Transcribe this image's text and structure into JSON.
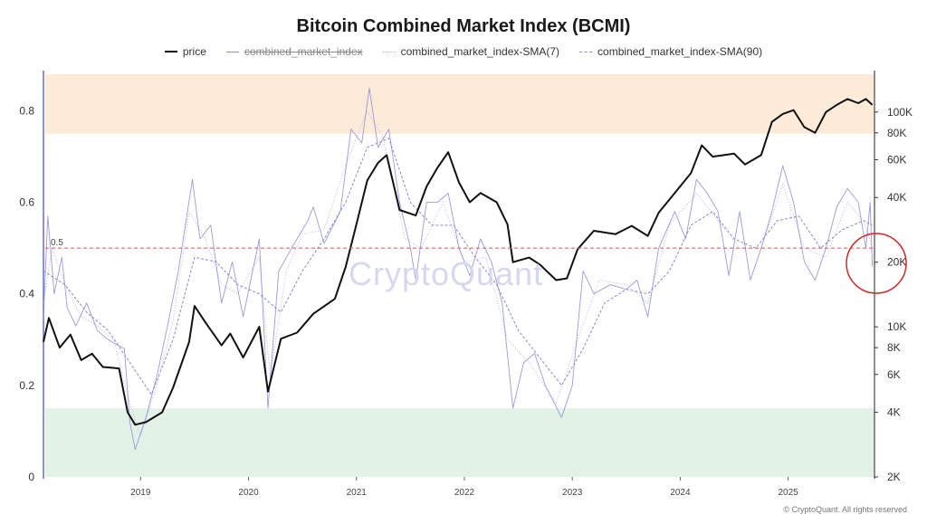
{
  "title": "Bitcoin Combined Market Index (BCMI)",
  "legend": [
    {
      "label": "price",
      "color": "#111111",
      "style": "solid"
    },
    {
      "label": "combined_market_index",
      "color": "#8a8ad6",
      "style": "solid-struck"
    },
    {
      "label": "combined_market_index-SMA(7)",
      "color": "#b3b3e6",
      "style": "dotted"
    },
    {
      "label": "combined_market_index-SMA(90)",
      "color": "#8a8ad6",
      "style": "dashed"
    }
  ],
  "watermark": "CryptoQuant",
  "copyright": "© CryptoQuant. All rights reserved",
  "reference_label": "0.5",
  "colors": {
    "price": "#111111",
    "index": "#8a8ad6",
    "sma7": "#b3b3e6",
    "sma90": "#7c7cc6",
    "overheat_zone": "#fdebd9",
    "undervalued_zone": "#e3f2e6",
    "reference_line": "#e05050",
    "annotation_circle": "#cc2a2a",
    "left_axis": "#6a6ae0"
  },
  "chart_data": {
    "type": "line",
    "title": "Bitcoin Combined Market Index (BCMI)",
    "x_tick_labels": [
      "2019",
      "2020",
      "2021",
      "2022",
      "2023",
      "2024",
      "2025"
    ],
    "xlim": [
      2018.1,
      2025.8
    ],
    "y_left": {
      "ylim": [
        0,
        0.88
      ],
      "ticks": [
        0,
        0.2,
        0.4,
        0.6,
        0.8
      ],
      "tick_labels": [
        "0",
        "0.2",
        "0.4",
        "0.6",
        "0.8"
      ]
    },
    "y_right": {
      "scale": "log",
      "ylim": [
        2000,
        150000
      ],
      "ticks": [
        2000,
        4000,
        6000,
        8000,
        10000,
        20000,
        40000,
        60000,
        80000,
        100000
      ],
      "tick_labels": [
        "2K",
        "4K",
        "6K",
        "8K",
        "10K",
        "20K",
        "40K",
        "60K",
        "80K",
        "100K"
      ]
    },
    "zones": [
      {
        "name": "overheat",
        "from": 0.75,
        "to": 0.88
      },
      {
        "name": "undervalued",
        "from": 0,
        "to": 0.15
      }
    ],
    "reference_line": 0.5,
    "grid": false,
    "legend_position": "top",
    "series": [
      {
        "name": "price",
        "axis": "right",
        "points": [
          [
            2018.1,
            8500
          ],
          [
            2018.15,
            11000
          ],
          [
            2018.25,
            8000
          ],
          [
            2018.35,
            9200
          ],
          [
            2018.45,
            7000
          ],
          [
            2018.55,
            7500
          ],
          [
            2018.65,
            6500
          ],
          [
            2018.8,
            6400
          ],
          [
            2018.88,
            4000
          ],
          [
            2018.95,
            3500
          ],
          [
            2019.05,
            3600
          ],
          [
            2019.2,
            4000
          ],
          [
            2019.3,
            5200
          ],
          [
            2019.45,
            8500
          ],
          [
            2019.5,
            12500
          ],
          [
            2019.6,
            10500
          ],
          [
            2019.75,
            8200
          ],
          [
            2019.83,
            9300
          ],
          [
            2019.95,
            7200
          ],
          [
            2020.1,
            10000
          ],
          [
            2020.18,
            5000
          ],
          [
            2020.3,
            8800
          ],
          [
            2020.45,
            9400
          ],
          [
            2020.6,
            11500
          ],
          [
            2020.8,
            13500
          ],
          [
            2020.9,
            19000
          ],
          [
            2021.0,
            30000
          ],
          [
            2021.1,
            48000
          ],
          [
            2021.2,
            58000
          ],
          [
            2021.28,
            63000
          ],
          [
            2021.4,
            35000
          ],
          [
            2021.55,
            33000
          ],
          [
            2021.65,
            45000
          ],
          [
            2021.75,
            55000
          ],
          [
            2021.85,
            65000
          ],
          [
            2021.95,
            47000
          ],
          [
            2022.05,
            38000
          ],
          [
            2022.15,
            42000
          ],
          [
            2022.3,
            38000
          ],
          [
            2022.4,
            30000
          ],
          [
            2022.45,
            20000
          ],
          [
            2022.6,
            21000
          ],
          [
            2022.7,
            19500
          ],
          [
            2022.85,
            16500
          ],
          [
            2022.95,
            16800
          ],
          [
            2023.05,
            23000
          ],
          [
            2023.2,
            28000
          ],
          [
            2023.4,
            27000
          ],
          [
            2023.55,
            29500
          ],
          [
            2023.7,
            26500
          ],
          [
            2023.8,
            34000
          ],
          [
            2023.95,
            42000
          ],
          [
            2024.1,
            52000
          ],
          [
            2024.2,
            70000
          ],
          [
            2024.3,
            62000
          ],
          [
            2024.5,
            64000
          ],
          [
            2024.6,
            57000
          ],
          [
            2024.75,
            63000
          ],
          [
            2024.85,
            90000
          ],
          [
            2024.95,
            98000
          ],
          [
            2025.05,
            102000
          ],
          [
            2025.15,
            85000
          ],
          [
            2025.25,
            80000
          ],
          [
            2025.35,
            100000
          ],
          [
            2025.45,
            108000
          ],
          [
            2025.55,
            115000
          ],
          [
            2025.65,
            110000
          ],
          [
            2025.72,
            115000
          ],
          [
            2025.78,
            108000
          ]
        ]
      },
      {
        "name": "combined_market_index",
        "axis": "left",
        "points": [
          [
            2018.1,
            0.35
          ],
          [
            2018.14,
            0.57
          ],
          [
            2018.2,
            0.4
          ],
          [
            2018.27,
            0.48
          ],
          [
            2018.32,
            0.37
          ],
          [
            2018.4,
            0.33
          ],
          [
            2018.5,
            0.38
          ],
          [
            2018.6,
            0.32
          ],
          [
            2018.7,
            0.3
          ],
          [
            2018.85,
            0.28
          ],
          [
            2018.9,
            0.12
          ],
          [
            2018.95,
            0.06
          ],
          [
            2019.05,
            0.13
          ],
          [
            2019.15,
            0.22
          ],
          [
            2019.25,
            0.33
          ],
          [
            2019.35,
            0.45
          ],
          [
            2019.48,
            0.65
          ],
          [
            2019.55,
            0.52
          ],
          [
            2019.65,
            0.55
          ],
          [
            2019.75,
            0.38
          ],
          [
            2019.85,
            0.47
          ],
          [
            2019.95,
            0.35
          ],
          [
            2020.1,
            0.52
          ],
          [
            2020.18,
            0.15
          ],
          [
            2020.28,
            0.45
          ],
          [
            2020.4,
            0.5
          ],
          [
            2020.55,
            0.56
          ],
          [
            2020.6,
            0.59
          ],
          [
            2020.7,
            0.51
          ],
          [
            2020.85,
            0.58
          ],
          [
            2020.95,
            0.76
          ],
          [
            2021.05,
            0.73
          ],
          [
            2021.12,
            0.85
          ],
          [
            2021.2,
            0.72
          ],
          [
            2021.3,
            0.76
          ],
          [
            2021.4,
            0.6
          ],
          [
            2021.5,
            0.5
          ],
          [
            2021.55,
            0.43
          ],
          [
            2021.65,
            0.6
          ],
          [
            2021.75,
            0.6
          ],
          [
            2021.85,
            0.62
          ],
          [
            2021.95,
            0.5
          ],
          [
            2022.05,
            0.44
          ],
          [
            2022.15,
            0.52
          ],
          [
            2022.25,
            0.47
          ],
          [
            2022.35,
            0.38
          ],
          [
            2022.45,
            0.15
          ],
          [
            2022.55,
            0.25
          ],
          [
            2022.65,
            0.27
          ],
          [
            2022.75,
            0.2
          ],
          [
            2022.9,
            0.13
          ],
          [
            2023.0,
            0.2
          ],
          [
            2023.1,
            0.45
          ],
          [
            2023.2,
            0.4
          ],
          [
            2023.35,
            0.42
          ],
          [
            2023.5,
            0.41
          ],
          [
            2023.6,
            0.43
          ],
          [
            2023.7,
            0.35
          ],
          [
            2023.8,
            0.5
          ],
          [
            2023.95,
            0.58
          ],
          [
            2024.05,
            0.52
          ],
          [
            2024.15,
            0.65
          ],
          [
            2024.25,
            0.62
          ],
          [
            2024.35,
            0.58
          ],
          [
            2024.45,
            0.44
          ],
          [
            2024.55,
            0.58
          ],
          [
            2024.65,
            0.43
          ],
          [
            2024.75,
            0.5
          ],
          [
            2024.85,
            0.58
          ],
          [
            2024.95,
            0.68
          ],
          [
            2025.05,
            0.6
          ],
          [
            2025.15,
            0.47
          ],
          [
            2025.25,
            0.43
          ],
          [
            2025.35,
            0.5
          ],
          [
            2025.45,
            0.59
          ],
          [
            2025.55,
            0.63
          ],
          [
            2025.65,
            0.6
          ],
          [
            2025.72,
            0.5
          ],
          [
            2025.76,
            0.6
          ],
          [
            2025.78,
            0.46
          ]
        ]
      },
      {
        "name": "combined_market_index-SMA(7)",
        "axis": "left",
        "points": [
          [
            2018.1,
            0.38
          ],
          [
            2018.18,
            0.5
          ],
          [
            2018.3,
            0.42
          ],
          [
            2018.45,
            0.35
          ],
          [
            2018.6,
            0.33
          ],
          [
            2018.75,
            0.3
          ],
          [
            2018.9,
            0.16
          ],
          [
            2019.0,
            0.09
          ],
          [
            2019.15,
            0.2
          ],
          [
            2019.3,
            0.34
          ],
          [
            2019.45,
            0.58
          ],
          [
            2019.6,
            0.52
          ],
          [
            2019.75,
            0.42
          ],
          [
            2019.9,
            0.4
          ],
          [
            2020.1,
            0.48
          ],
          [
            2020.2,
            0.22
          ],
          [
            2020.35,
            0.45
          ],
          [
            2020.5,
            0.53
          ],
          [
            2020.7,
            0.54
          ],
          [
            2020.9,
            0.68
          ],
          [
            2021.1,
            0.8
          ],
          [
            2021.25,
            0.74
          ],
          [
            2021.45,
            0.52
          ],
          [
            2021.6,
            0.5
          ],
          [
            2021.8,
            0.6
          ],
          [
            2022.0,
            0.47
          ],
          [
            2022.2,
            0.48
          ],
          [
            2022.4,
            0.3
          ],
          [
            2022.6,
            0.25
          ],
          [
            2022.85,
            0.16
          ],
          [
            2023.05,
            0.3
          ],
          [
            2023.25,
            0.43
          ],
          [
            2023.5,
            0.42
          ],
          [
            2023.7,
            0.38
          ],
          [
            2023.9,
            0.55
          ],
          [
            2024.15,
            0.62
          ],
          [
            2024.35,
            0.56
          ],
          [
            2024.55,
            0.5
          ],
          [
            2024.75,
            0.5
          ],
          [
            2024.95,
            0.64
          ],
          [
            2025.15,
            0.5
          ],
          [
            2025.35,
            0.48
          ],
          [
            2025.55,
            0.6
          ],
          [
            2025.7,
            0.56
          ],
          [
            2025.78,
            0.5
          ]
        ]
      },
      {
        "name": "combined_market_index-SMA(90)",
        "axis": "left",
        "points": [
          [
            2018.1,
            0.45
          ],
          [
            2018.3,
            0.42
          ],
          [
            2018.5,
            0.36
          ],
          [
            2018.7,
            0.32
          ],
          [
            2018.9,
            0.25
          ],
          [
            2019.1,
            0.18
          ],
          [
            2019.3,
            0.3
          ],
          [
            2019.5,
            0.48
          ],
          [
            2019.7,
            0.47
          ],
          [
            2019.9,
            0.42
          ],
          [
            2020.1,
            0.4
          ],
          [
            2020.3,
            0.36
          ],
          [
            2020.5,
            0.45
          ],
          [
            2020.7,
            0.52
          ],
          [
            2020.9,
            0.6
          ],
          [
            2021.1,
            0.72
          ],
          [
            2021.3,
            0.74
          ],
          [
            2021.5,
            0.6
          ],
          [
            2021.7,
            0.55
          ],
          [
            2021.9,
            0.55
          ],
          [
            2022.1,
            0.48
          ],
          [
            2022.3,
            0.42
          ],
          [
            2022.5,
            0.32
          ],
          [
            2022.7,
            0.26
          ],
          [
            2022.9,
            0.2
          ],
          [
            2023.1,
            0.28
          ],
          [
            2023.3,
            0.38
          ],
          [
            2023.5,
            0.41
          ],
          [
            2023.7,
            0.4
          ],
          [
            2023.9,
            0.45
          ],
          [
            2024.1,
            0.55
          ],
          [
            2024.3,
            0.58
          ],
          [
            2024.5,
            0.52
          ],
          [
            2024.7,
            0.5
          ],
          [
            2024.9,
            0.56
          ],
          [
            2025.1,
            0.57
          ],
          [
            2025.3,
            0.5
          ],
          [
            2025.5,
            0.54
          ],
          [
            2025.7,
            0.56
          ],
          [
            2025.78,
            0.55
          ]
        ]
      }
    ]
  }
}
